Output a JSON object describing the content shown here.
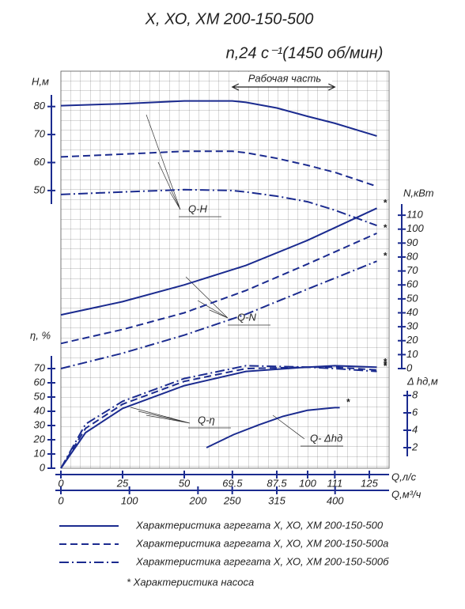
{
  "title": "Х, ХО, ХМ 200-150-500",
  "subtitle": "n,24 с⁻¹(1450 об/мин)",
  "working_zone": "Рабочая часть",
  "x_axes": [
    {
      "label": "Q,л/с",
      "xlim": [
        0,
        133
      ],
      "xticks": [
        0,
        25,
        50,
        69.5,
        87.5,
        100,
        111,
        125
      ]
    },
    {
      "label": "Q,м³/ч",
      "xlim": [
        0,
        478.8
      ],
      "xticks": [
        0,
        100,
        200,
        250,
        315,
        400
      ]
    }
  ],
  "chart_data": [
    {
      "type": "line",
      "axis_label": "Н,м",
      "annotation": "Q-H",
      "ylim": [
        35,
        85
      ],
      "yticks": [
        50,
        60,
        70,
        80
      ],
      "x": [
        0,
        25,
        50,
        69.5,
        75,
        87.5,
        100,
        111,
        128
      ],
      "series": [
        {
          "name": "Характеристика агрегата Х, ХО, ХМ 200-150-500",
          "style": "solid",
          "color": "#1b2b8f",
          "values": [
            80.3,
            81,
            82,
            82,
            81.5,
            79.5,
            76.5,
            74,
            69.5
          ]
        },
        {
          "name": "Характеристика агрегата Х, ХО, ХМ 200-150-500а",
          "style": "dashed",
          "color": "#1b2b8f",
          "values": [
            62,
            63,
            64,
            64,
            63.5,
            61.5,
            59,
            56.5,
            51.5
          ]
        },
        {
          "name": "Характеристика агрегата Х, ХО, ХМ 200-150-500б",
          "style": "dashdot",
          "color": "#1b2b8f",
          "values": [
            48.6,
            49.5,
            50.3,
            50,
            49.5,
            48,
            46,
            43,
            37.5
          ]
        }
      ]
    },
    {
      "type": "line",
      "axis_label": "N,кВт",
      "annotation": "Q-N",
      "end_mark": "*",
      "ylim": [
        0,
        118
      ],
      "yticks": [
        0,
        10,
        20,
        30,
        40,
        50,
        60,
        70,
        80,
        90,
        100,
        110
      ],
      "x": [
        0,
        25,
        50,
        75,
        100,
        128
      ],
      "series": [
        {
          "style": "solid",
          "color": "#1b2b8f",
          "values": [
            38.5,
            48,
            60,
            74,
            92,
            115
          ]
        },
        {
          "style": "dashed",
          "color": "#1b2b8f",
          "values": [
            18,
            28,
            40,
            56,
            75,
            97
          ]
        },
        {
          "style": "dashdot",
          "color": "#1b2b8f",
          "values": [
            0,
            11,
            24,
            39,
            57,
            77
          ]
        }
      ]
    },
    {
      "type": "line",
      "axis_label": "η, %",
      "annotation": "Q-η",
      "end_mark": "*",
      "ylim": [
        0,
        75
      ],
      "yticks": [
        0,
        10,
        20,
        30,
        40,
        50,
        60,
        70
      ],
      "x": [
        0,
        10,
        25,
        50,
        75,
        100,
        111,
        128
      ],
      "series": [
        {
          "style": "solid",
          "color": "#1b2b8f",
          "values": [
            0,
            25,
            42,
            58,
            68,
            71,
            72,
            71
          ]
        },
        {
          "style": "dashed",
          "color": "#1b2b8f",
          "values": [
            0,
            28,
            45,
            61,
            70,
            71,
            71,
            69
          ]
        },
        {
          "style": "dashdot",
          "color": "#1b2b8f",
          "values": [
            0,
            31,
            47,
            63,
            72,
            71,
            70,
            68
          ]
        }
      ]
    },
    {
      "type": "line",
      "axis_label": "Δ hд,м",
      "annotation": "Q- Δhд",
      "end_mark": "*",
      "ylim": [
        1,
        8.5
      ],
      "yticks": [
        2,
        4,
        6,
        8
      ],
      "x": [
        59,
        70,
        80,
        90,
        100,
        111,
        113
      ],
      "series": [
        {
          "style": "solid",
          "color": "#1b2b8f",
          "values": [
            2,
            3.5,
            4.6,
            5.6,
            6.3,
            6.6,
            6.6
          ]
        }
      ]
    }
  ],
  "note": "* Характеристика насоса"
}
